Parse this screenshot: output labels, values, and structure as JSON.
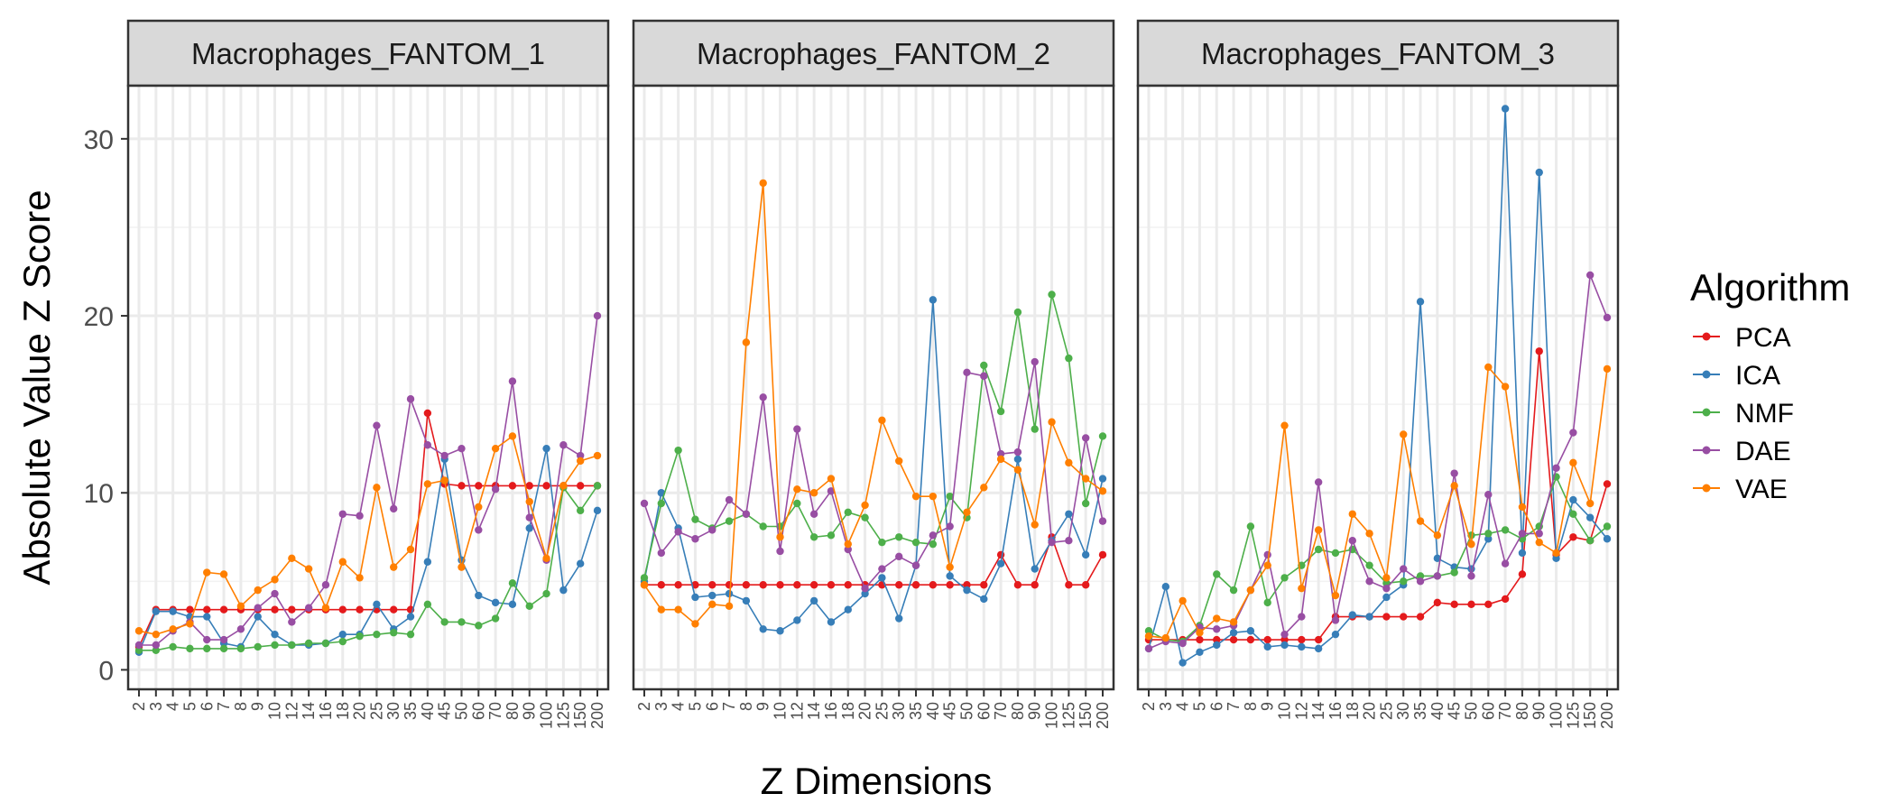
{
  "chart_data": {
    "type": "line",
    "xlabel": "Z Dimensions",
    "ylabel": "Absolute Value Z Score",
    "ylim": [
      -1.1,
      33
    ],
    "yticks": [
      0,
      10,
      20,
      30
    ],
    "grid": true,
    "legend": {
      "title": "Algorithm",
      "position": "right"
    },
    "categories": [
      "2",
      "3",
      "4",
      "5",
      "6",
      "7",
      "8",
      "9",
      "10",
      "12",
      "14",
      "16",
      "18",
      "20",
      "25",
      "30",
      "35",
      "40",
      "45",
      "50",
      "60",
      "70",
      "80",
      "90",
      "100",
      "125",
      "150",
      "200"
    ],
    "series_styles": [
      {
        "name": "PCA",
        "color": "#e41a1c"
      },
      {
        "name": "ICA",
        "color": "#377eb8"
      },
      {
        "name": "NMF",
        "color": "#4daf4a"
      },
      {
        "name": "DAE",
        "color": "#984ea3"
      },
      {
        "name": "VAE",
        "color": "#ff7f00"
      }
    ],
    "panels": [
      {
        "title": "Macrophages_FANTOM_1",
        "series": [
          {
            "name": "PCA",
            "values": [
              1.3,
              3.4,
              3.4,
              3.4,
              3.4,
              3.4,
              3.4,
              3.4,
              3.4,
              3.4,
              3.4,
              3.4,
              3.4,
              3.4,
              3.4,
              3.4,
              3.4,
              14.5,
              10.5,
              10.4,
              10.4,
              10.4,
              10.4,
              10.4,
              10.4,
              10.4,
              10.4,
              10.4
            ]
          },
          {
            "name": "ICA",
            "values": [
              1.0,
              3.3,
              3.3,
              3.0,
              3.0,
              1.5,
              1.3,
              3.0,
              2.0,
              1.4,
              1.4,
              1.5,
              2.0,
              2.0,
              3.7,
              2.3,
              3.0,
              6.1,
              11.9,
              6.2,
              4.2,
              3.8,
              3.7,
              8.0,
              12.5,
              4.5,
              6.0,
              9.0
            ]
          },
          {
            "name": "NMF",
            "values": [
              1.1,
              1.1,
              1.3,
              1.2,
              1.2,
              1.2,
              1.2,
              1.3,
              1.4,
              1.4,
              1.5,
              1.5,
              1.6,
              1.9,
              2.0,
              2.1,
              2.0,
              3.7,
              2.7,
              2.7,
              2.5,
              2.9,
              4.9,
              3.6,
              4.3,
              10.3,
              9.0,
              10.4
            ]
          },
          {
            "name": "DAE",
            "values": [
              1.4,
              1.4,
              2.2,
              2.7,
              1.7,
              1.7,
              2.3,
              3.5,
              4.3,
              2.7,
              3.5,
              4.8,
              8.8,
              8.7,
              13.8,
              9.1,
              15.3,
              12.7,
              12.1,
              12.5,
              7.9,
              10.2,
              16.3,
              8.6,
              6.2,
              12.7,
              12.1,
              20.0
            ]
          },
          {
            "name": "VAE",
            "values": [
              2.2,
              2.0,
              2.3,
              2.6,
              5.5,
              5.4,
              3.6,
              4.5,
              5.1,
              6.3,
              5.7,
              3.5,
              6.1,
              5.2,
              10.3,
              5.8,
              6.8,
              10.5,
              10.7,
              5.8,
              9.2,
              12.5,
              13.2,
              9.5,
              6.3,
              10.4,
              11.8,
              12.1
            ]
          }
        ]
      },
      {
        "title": "Macrophages_FANTOM_2",
        "series": [
          {
            "name": "PCA",
            "values": [
              4.8,
              4.8,
              4.8,
              4.8,
              4.8,
              4.8,
              4.8,
              4.8,
              4.8,
              4.8,
              4.8,
              4.8,
              4.8,
              4.8,
              4.8,
              4.8,
              4.8,
              4.8,
              4.8,
              4.8,
              4.8,
              6.5,
              4.8,
              4.8,
              7.5,
              4.8,
              4.8,
              6.5
            ]
          },
          {
            "name": "ICA",
            "values": [
              5.0,
              10.0,
              8.0,
              4.1,
              4.2,
              4.3,
              3.9,
              2.3,
              2.2,
              2.8,
              3.9,
              2.7,
              3.4,
              4.3,
              5.2,
              2.9,
              5.9,
              20.9,
              5.3,
              4.5,
              4.0,
              6.0,
              11.9,
              5.7,
              7.3,
              8.8,
              6.5,
              10.8
            ]
          },
          {
            "name": "NMF",
            "values": [
              5.2,
              9.4,
              12.4,
              8.5,
              8.0,
              8.4,
              8.8,
              8.1,
              8.1,
              9.4,
              7.5,
              7.6,
              8.9,
              8.6,
              7.2,
              7.5,
              7.2,
              7.1,
              9.8,
              8.6,
              17.2,
              14.6,
              20.2,
              13.6,
              21.2,
              17.6,
              9.4,
              13.2
            ]
          },
          {
            "name": "DAE",
            "values": [
              9.4,
              6.6,
              7.8,
              7.4,
              7.9,
              9.6,
              8.8,
              15.4,
              6.7,
              13.6,
              8.8,
              10.1,
              6.8,
              4.6,
              5.7,
              6.4,
              5.9,
              7.6,
              8.1,
              16.8,
              16.6,
              12.2,
              12.3,
              17.4,
              7.2,
              7.3,
              13.1,
              8.4
            ]
          },
          {
            "name": "VAE",
            "values": [
              4.8,
              3.4,
              3.4,
              2.6,
              3.7,
              3.6,
              18.5,
              27.5,
              7.5,
              10.2,
              10.0,
              10.8,
              7.1,
              9.3,
              14.1,
              11.8,
              9.8,
              9.8,
              5.8,
              8.9,
              10.3,
              11.9,
              11.3,
              8.2,
              14.0,
              11.7,
              10.8,
              10.1
            ]
          }
        ]
      },
      {
        "title": "Macrophages_FANTOM_3",
        "series": [
          {
            "name": "PCA",
            "values": [
              1.7,
              1.7,
              1.7,
              1.7,
              1.7,
              1.7,
              1.7,
              1.7,
              1.7,
              1.7,
              1.7,
              3.0,
              3.0,
              3.0,
              3.0,
              3.0,
              3.0,
              3.8,
              3.7,
              3.7,
              3.7,
              4.0,
              5.4,
              18.0,
              6.5,
              7.5,
              7.3,
              10.5
            ]
          },
          {
            "name": "ICA",
            "values": [
              1.2,
              4.7,
              0.4,
              1.0,
              1.4,
              2.1,
              2.2,
              1.3,
              1.4,
              1.3,
              1.2,
              2.0,
              3.1,
              3.0,
              4.1,
              4.8,
              20.8,
              6.3,
              5.8,
              5.7,
              7.4,
              31.7,
              6.6,
              28.1,
              6.3,
              9.6,
              8.6,
              7.4
            ]
          },
          {
            "name": "NMF",
            "values": [
              2.2,
              1.7,
              1.6,
              2.5,
              5.4,
              4.5,
              8.1,
              3.8,
              5.2,
              5.9,
              6.8,
              6.6,
              6.8,
              5.9,
              4.9,
              5.0,
              5.3,
              5.3,
              5.5,
              7.6,
              7.7,
              7.9,
              7.4,
              8.1,
              10.9,
              8.8,
              7.3,
              8.1
            ]
          },
          {
            "name": "DAE",
            "values": [
              1.2,
              1.6,
              1.5,
              2.4,
              2.3,
              2.5,
              4.5,
              6.5,
              2.0,
              3.0,
              10.6,
              2.8,
              7.3,
              5.0,
              4.6,
              5.7,
              5.0,
              5.3,
              11.1,
              5.3,
              9.9,
              6.0,
              7.7,
              7.7,
              11.4,
              13.4,
              22.3,
              19.9
            ]
          },
          {
            "name": "VAE",
            "values": [
              1.9,
              1.8,
              3.9,
              2.1,
              2.9,
              2.7,
              4.5,
              5.9,
              13.8,
              4.6,
              7.9,
              4.2,
              8.8,
              7.7,
              5.2,
              13.3,
              8.4,
              7.6,
              10.4,
              7.1,
              17.1,
              16.0,
              9.2,
              7.2,
              6.6,
              11.7,
              9.4,
              17.0
            ]
          }
        ]
      }
    ]
  }
}
